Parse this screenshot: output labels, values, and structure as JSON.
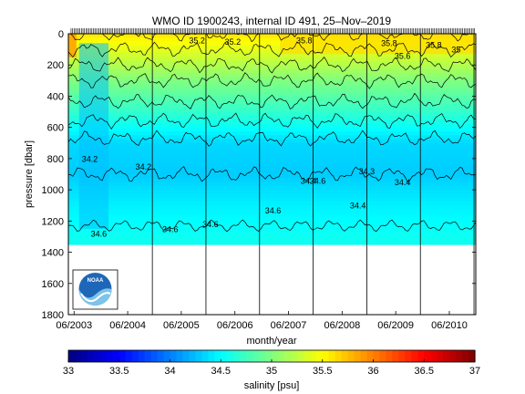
{
  "chart_data": {
    "type": "heatmap",
    "title": "WMO ID 1900243, internal ID 491, 25–Nov–2019",
    "xlabel": "month/year",
    "ylabel": "pressure [dbar]",
    "colorbar_label": "salinity [psu]",
    "x_ticks": [
      "06/2003",
      "06/2004",
      "06/2005",
      "06/2006",
      "06/2007",
      "06/2008",
      "06/2009",
      "06/2010"
    ],
    "y_ticks": [
      0,
      200,
      400,
      600,
      800,
      1000,
      1200,
      1400,
      1600,
      1800
    ],
    "ylim": [
      0,
      1800
    ],
    "y_reversed": true,
    "colorbar_ticks": [
      33,
      33.5,
      34,
      34.5,
      35,
      35.5,
      36,
      36.5,
      37
    ],
    "clim": [
      33,
      37
    ],
    "colormap": "jet",
    "max_profile_depth": 1350,
    "year_profile_dates": [
      "2004-12",
      "2005-12",
      "2006-12",
      "2007-12",
      "2008-12",
      "2009-12",
      "2010-12"
    ],
    "salinity_by_depth": [
      {
        "pressure": 0,
        "salinity": 35.6
      },
      {
        "pressure": 100,
        "salinity": 35.4
      },
      {
        "pressure": 300,
        "salinity": 35.0
      },
      {
        "pressure": 500,
        "salinity": 34.7
      },
      {
        "pressure": 700,
        "salinity": 34.35
      },
      {
        "pressure": 900,
        "salinity": 34.3
      },
      {
        "pressure": 1100,
        "salinity": 34.45
      },
      {
        "pressure": 1300,
        "salinity": 34.55
      }
    ],
    "contour_labels": [
      {
        "text": "34.2",
        "date": "2003-10",
        "pressure": 820
      },
      {
        "text": "34.2",
        "date": "2004-10",
        "pressure": 870
      },
      {
        "text": "34.6",
        "date": "2003-12",
        "pressure": 1300
      },
      {
        "text": "34.6",
        "date": "2005-04",
        "pressure": 1270
      },
      {
        "text": "34.6",
        "date": "2006-01",
        "pressure": 1240
      },
      {
        "text": "34.6",
        "date": "2007-03",
        "pressure": 1150
      },
      {
        "text": "34.4",
        "date": "2007-11",
        "pressure": 960
      },
      {
        "text": "34.4",
        "date": "2008-10",
        "pressure": 1120
      },
      {
        "text": "34.6",
        "date": "2008-01",
        "pressure": 960
      },
      {
        "text": "34.3",
        "date": "2008-12",
        "pressure": 900
      },
      {
        "text": "34.4",
        "date": "2009-08",
        "pressure": 970
      },
      {
        "text": "35.2",
        "date": "2005-10",
        "pressure": 60
      },
      {
        "text": "35.2",
        "date": "2006-06",
        "pressure": 70
      },
      {
        "text": "35.8",
        "date": "2007-10",
        "pressure": 60
      },
      {
        "text": "35.8",
        "date": "2009-05",
        "pressure": 80
      },
      {
        "text": "35.8",
        "date": "2010-03",
        "pressure": 90
      },
      {
        "text": "35.6",
        "date": "2009-08",
        "pressure": 160
      },
      {
        "text": "35",
        "date": "2010-08",
        "pressure": 120
      }
    ]
  },
  "logo_text": "NOAA"
}
